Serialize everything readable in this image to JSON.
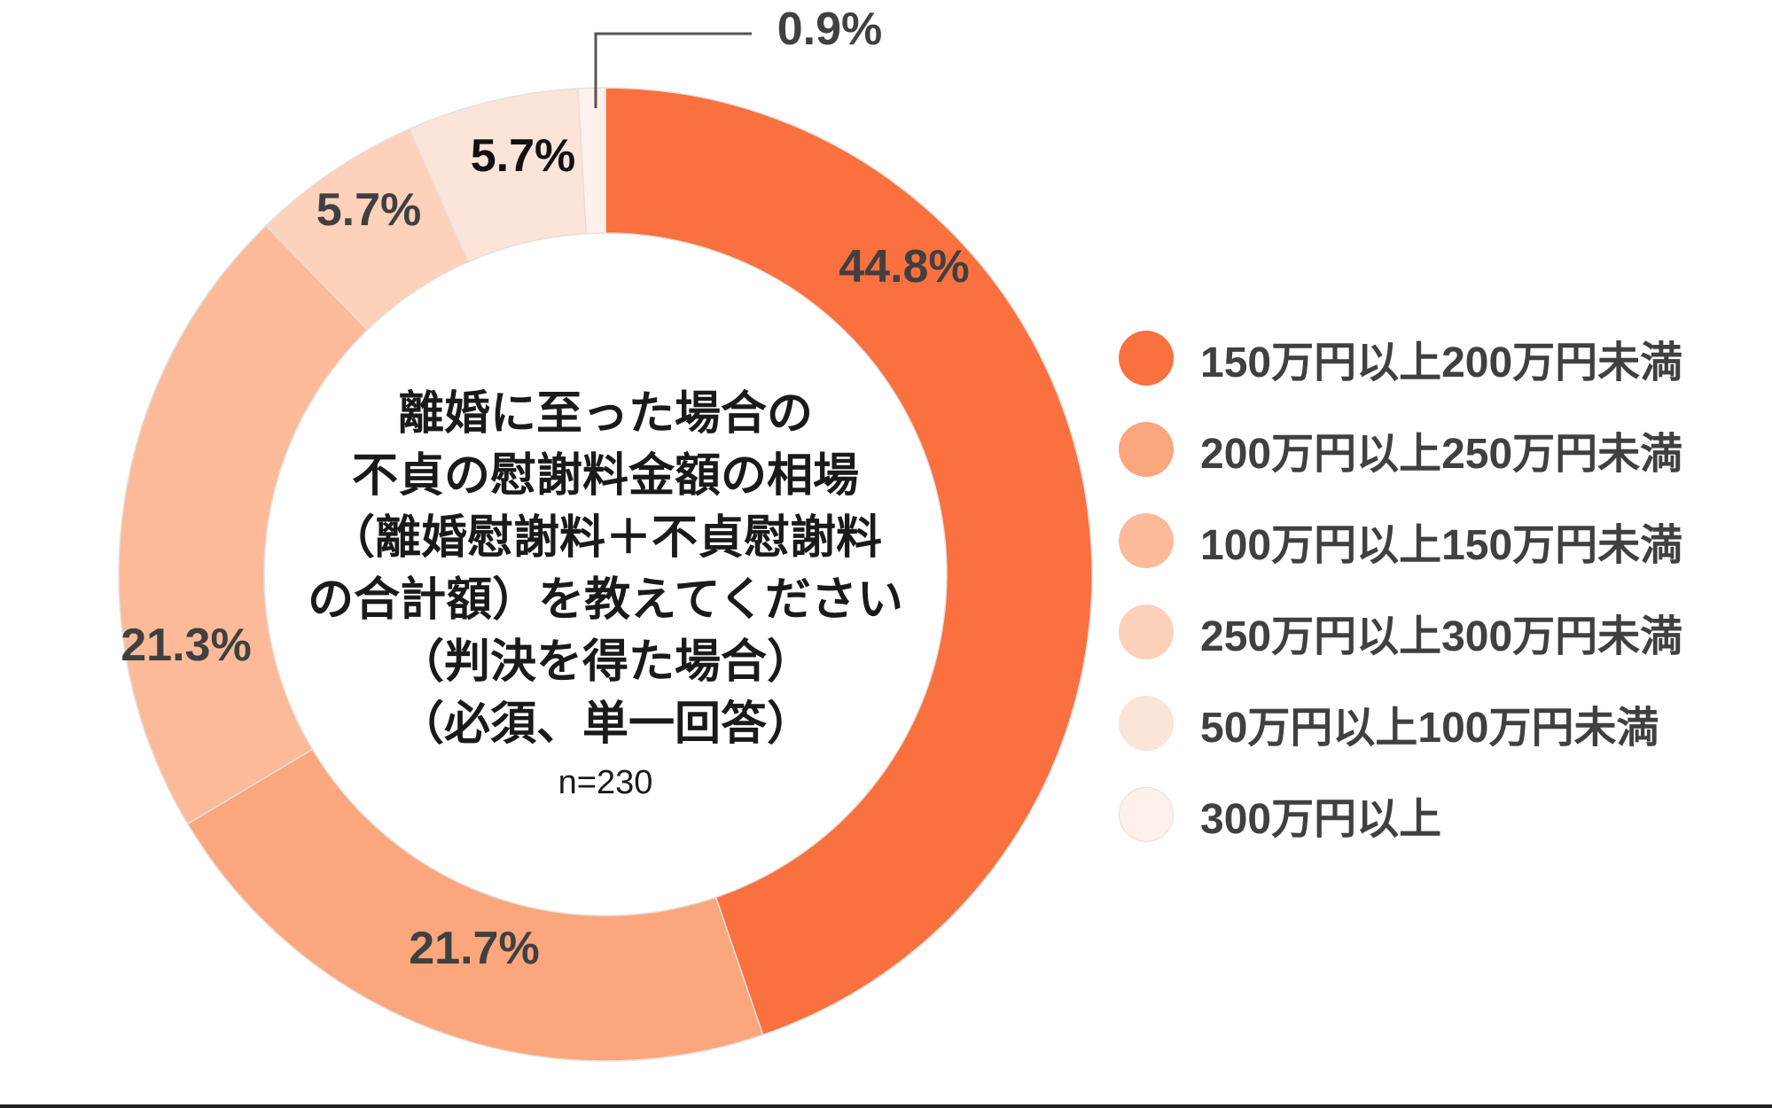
{
  "chart_data": {
    "type": "pie",
    "variant": "donut",
    "title": "離婚に至った場合の不貞の慰謝料金額の相場（離婚慰謝料＋不貞慰謝料の合計額）を教えてください（判決を得た場合）（必須、単一回答）",
    "title_lines": [
      "離婚に至った場合の",
      "不貞の慰謝料金額の相場",
      "（離婚慰謝料＋不貞慰謝料",
      "の合計額）を教えてください",
      "（判決を得た場合）",
      "（必須、単一回答）"
    ],
    "sample_size": "n=230",
    "categories": [
      "150万円以上200万円未満",
      "200万円以上250万円未満",
      "100万円以上150万円未満",
      "250万円以上300万円未満",
      "50万円以上100万円未満",
      "300万円以上"
    ],
    "values": [
      44.8,
      21.7,
      21.3,
      5.7,
      5.7,
      0.9
    ],
    "labels": [
      "44.8%",
      "21.7%",
      "21.3%",
      "5.7%",
      "5.7%",
      "0.9%"
    ],
    "colors": [
      "#FA703F",
      "#FBA67D",
      "#FCBA98",
      "#FDD1BA",
      "#FDE4D8",
      "#FEF0EA"
    ],
    "start_angle": "12 o'clock",
    "direction": "clockwise",
    "legend_position": "right",
    "unit": "%"
  }
}
